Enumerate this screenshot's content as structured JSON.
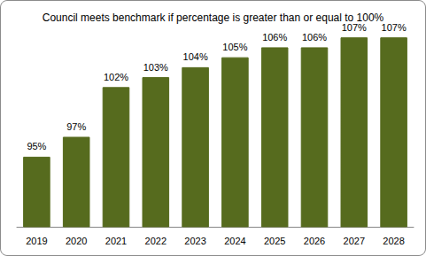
{
  "chart_data": {
    "type": "bar",
    "title": "Council meets benchmark if percentage is greater than or equal to 100%",
    "categories": [
      "2019",
      "2020",
      "2021",
      "2022",
      "2023",
      "2024",
      "2025",
      "2026",
      "2027",
      "2028"
    ],
    "values": [
      95,
      97,
      102,
      103,
      104,
      105,
      106,
      106,
      107,
      107
    ],
    "value_labels": [
      "95%",
      "97%",
      "102%",
      "103%",
      "104%",
      "105%",
      "106%",
      "106%",
      "107%",
      "107%"
    ],
    "color": "#566b1e",
    "ylim": [
      88,
      110
    ],
    "yticks": [
      88,
      90,
      92,
      94,
      96,
      98,
      100,
      102,
      104,
      106,
      108,
      110
    ],
    "grid": false,
    "data_labels": true,
    "tick_labels": "x"
  }
}
